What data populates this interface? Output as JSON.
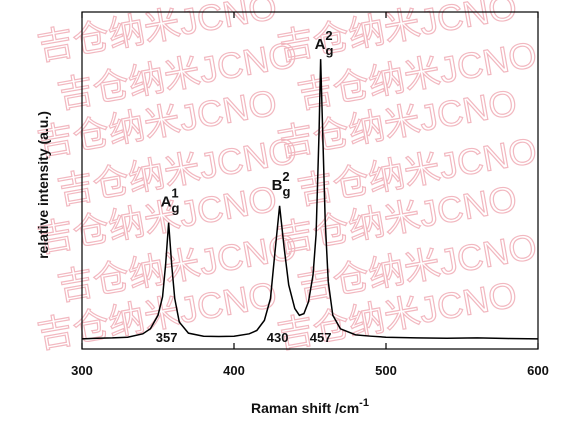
{
  "chart_data": {
    "type": "line",
    "watermark": "吉仓纳米JCNO",
    "xlabel": {
      "base": "Raman shift /cm",
      "sup": "-1"
    },
    "ylabel": "relative intensity (a.u.)",
    "xlim": [
      300,
      600
    ],
    "xticks": [
      300,
      400,
      500,
      600
    ],
    "ylim": [
      0,
      100
    ],
    "color": "#000000",
    "x": [
      300,
      310,
      320,
      330,
      340,
      345,
      350,
      353,
      355,
      357,
      359,
      361,
      364,
      370,
      380,
      390,
      400,
      410,
      415,
      420,
      424,
      427,
      430,
      433,
      436,
      440,
      443,
      446,
      449,
      452,
      454,
      456,
      457,
      458,
      460,
      462,
      465,
      470,
      480,
      490,
      500,
      520,
      540,
      560,
      580,
      600
    ],
    "values": [
      3.0,
      3.2,
      3.3,
      3.5,
      4.5,
      6.0,
      10.0,
      15.5,
      25,
      37.5,
      25,
      15,
      8,
      4.7,
      3.8,
      3.7,
      3.8,
      4.5,
      5.5,
      8.5,
      15,
      29,
      42.5,
      30,
      19,
      12,
      10,
      10.5,
      14,
      22,
      34,
      65,
      86,
      70,
      38,
      20,
      10,
      6,
      4.2,
      3.8,
      3.5,
      3.3,
      3.2,
      3.3,
      3.1,
      3.0
    ],
    "peaks": [
      {
        "position": 357,
        "mode": {
          "base": "A",
          "sub": "g",
          "sup": "1"
        }
      },
      {
        "position": 430,
        "mode": {
          "base": "B",
          "sub": "g",
          "sup": "2"
        }
      },
      {
        "position": 457,
        "mode": {
          "base": "A",
          "sub": "g",
          "sup": "2"
        }
      }
    ]
  }
}
